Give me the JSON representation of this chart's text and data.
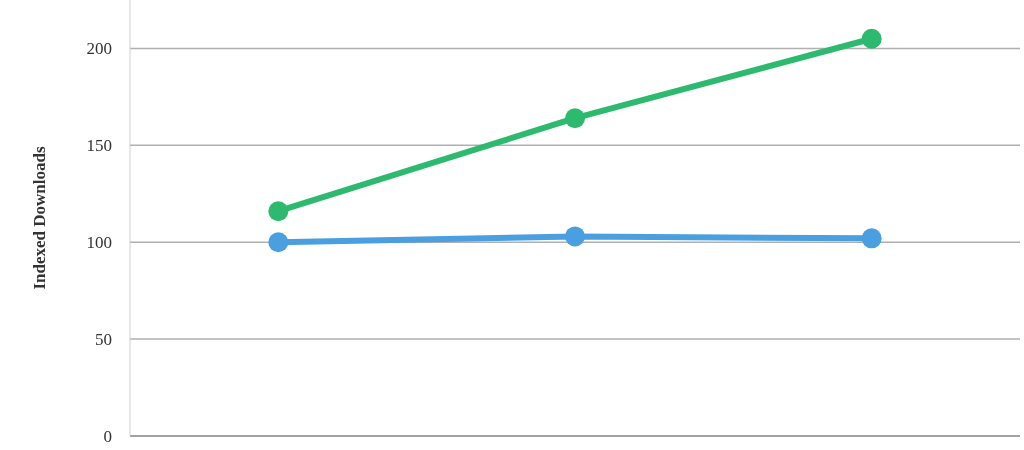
{
  "chart_data": {
    "type": "line",
    "ylabel": "Indexed Downloads",
    "categories": [
      null,
      null,
      null
    ],
    "series": [
      {
        "color": "#2dba6e",
        "values": [
          116,
          164,
          205
        ]
      },
      {
        "color": "#4a9fe0",
        "values": [
          100,
          103,
          102
        ]
      }
    ],
    "ylim": [
      0,
      225
    ],
    "yticks": [
      0,
      50,
      100,
      150,
      200
    ],
    "grid": "y",
    "marker": "circle",
    "tick_labels": "y"
  }
}
